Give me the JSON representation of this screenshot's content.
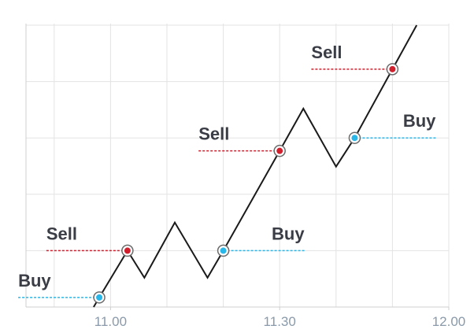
{
  "chart_data": {
    "type": "line",
    "x": [
      657,
      658,
      663,
      666,
      671.4,
      677.2,
      680,
      690,
      694.2,
      700,
      703.3,
      710,
      714.3
    ],
    "values": [
      0,
      0.17,
      1.0,
      0.52,
      1.5,
      0.52,
      1.0,
      2.77,
      3.52,
      2.49,
      3.0,
      4.22,
      5.0
    ],
    "color": "#1a1a1a",
    "xlim": [
      645,
      720
    ],
    "ylim": [
      0,
      5
    ],
    "xticks": [
      {
        "value": 660,
        "label": "11.00"
      },
      {
        "value": 690,
        "label": "11.30"
      },
      {
        "value": 720,
        "label": "12.00"
      }
    ],
    "xgrid": [
      650,
      660,
      670,
      680,
      690,
      700,
      710,
      720
    ],
    "ygrid": [
      1,
      2,
      3,
      4,
      5
    ],
    "grid": true,
    "signals": [
      {
        "label": "Buy",
        "x": 658,
        "y": 0.17,
        "side": "left",
        "color": "#29b6e8"
      },
      {
        "label": "Sell",
        "x": 663,
        "y": 1.0,
        "side": "left",
        "color": "#d0202e"
      },
      {
        "label": "Buy",
        "x": 680,
        "y": 1.0,
        "side": "right",
        "color": "#29b6e8"
      },
      {
        "label": "Sell",
        "x": 690,
        "y": 2.77,
        "side": "left",
        "color": "#d0202e"
      },
      {
        "label": "Buy",
        "x": 703.3,
        "y": 3.0,
        "side": "right",
        "color": "#29b6e8"
      },
      {
        "label": "Sell",
        "x": 710,
        "y": 4.22,
        "side": "left",
        "color": "#d0202e"
      }
    ]
  }
}
